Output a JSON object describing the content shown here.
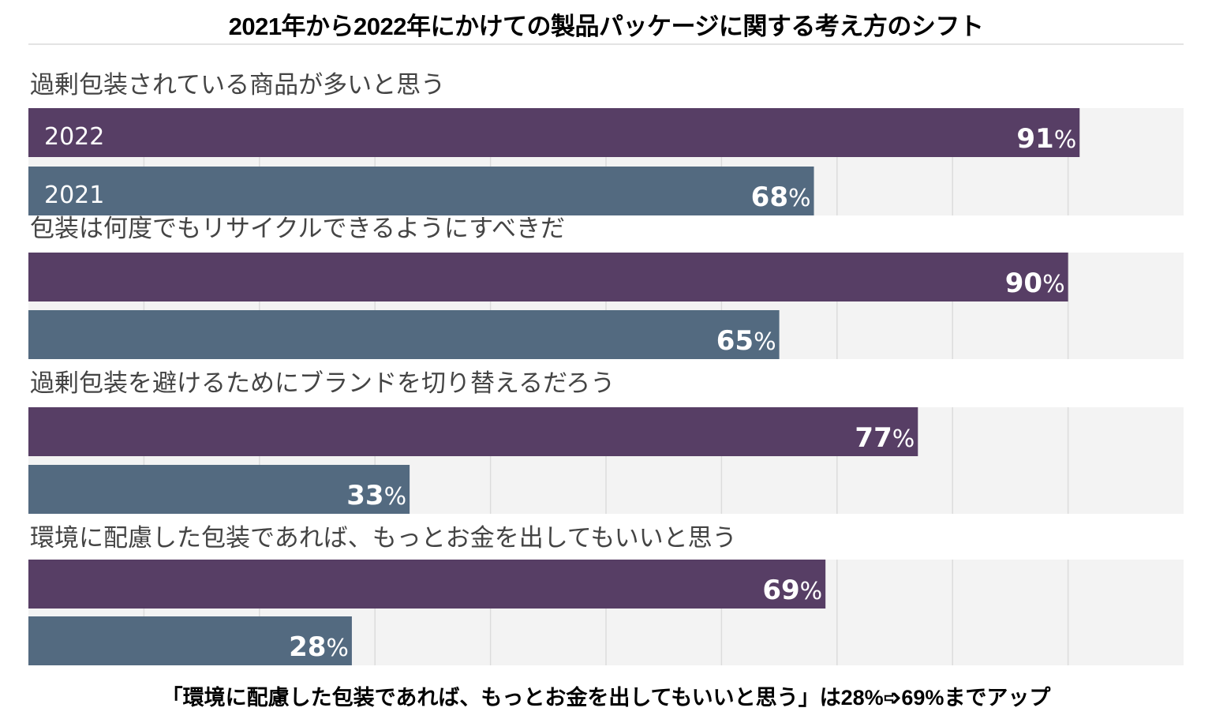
{
  "chart_data": {
    "type": "bar",
    "orientation": "horizontal",
    "title": "2021年から2022年にかけての製品パッケージに関する考え方のシフト",
    "footnote": "「環境に配慮した包装であれば、もっとお金を出してもいいと思う」は28%➩69%までアップ",
    "categories": [
      "過剰包装されている商品が多いと思う",
      "包装は何度でもリサイクルできるようにすべきだ",
      "過剰包装を避けるためにブランドを切り替えるだろう",
      "環境に配慮した包装であれば、もっとお金を出してもいいと思う"
    ],
    "series": [
      {
        "name": "2022",
        "color": "#573e65",
        "values": [
          91,
          90,
          77,
          69
        ]
      },
      {
        "name": "2021",
        "color": "#536a80",
        "values": [
          68,
          65,
          33,
          28
        ]
      }
    ],
    "value_suffix": "%",
    "xlim": [
      0,
      100
    ],
    "grid": true,
    "legend": "inline-on-first-group"
  }
}
